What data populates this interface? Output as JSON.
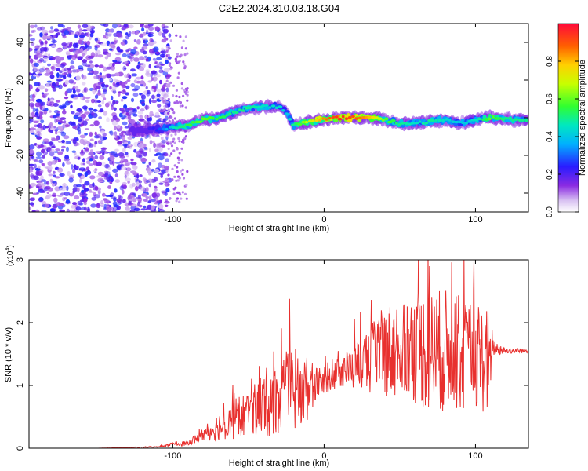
{
  "figure_title": "C2E2.2024.310.03.18.G04",
  "chart_data": [
    {
      "type": "heatmap",
      "title": "C2E2.2024.310.03.18.G04",
      "xlabel": "Height of straight line (km)",
      "ylabel": "Frequency (Hz)",
      "xlim": [
        -195,
        135
      ],
      "ylim": [
        -50,
        50
      ],
      "x_ticks": [
        -100,
        0,
        100
      ],
      "y_ticks": [
        -40,
        -20,
        0,
        20,
        40
      ],
      "colorbar": {
        "label": "Normalized spectral amplitude",
        "range": [
          0,
          1
        ],
        "ticks": [
          "0.0",
          "0.2",
          "0.4",
          "0.6",
          "0.8"
        ],
        "colormap": "rainbow"
      },
      "ridge": {
        "x": [
          -125,
          -110,
          -100,
          -90,
          -80,
          -70,
          -60,
          -50,
          -40,
          -30,
          -25,
          -20,
          -10,
          0,
          10,
          20,
          30,
          40,
          50,
          60,
          70,
          80,
          90,
          100,
          110,
          120,
          135
        ],
        "freq": [
          -7,
          -6,
          -5,
          -4,
          -1,
          0,
          3,
          5,
          6,
          6,
          3,
          -4,
          -2,
          -1,
          0,
          0,
          0,
          -1,
          -3,
          -3,
          -2,
          -1,
          -3,
          -1,
          0,
          -1,
          -1
        ],
        "peak_amplitude": [
          0.15,
          0.25,
          0.45,
          0.55,
          0.6,
          0.55,
          0.5,
          0.5,
          0.45,
          0.45,
          0.4,
          0.5,
          0.7,
          0.85,
          0.95,
          0.9,
          0.8,
          0.6,
          0.5,
          0.45,
          0.5,
          0.45,
          0.4,
          0.45,
          0.6,
          0.5,
          0.5
        ]
      },
      "noise_region": {
        "x_from": -195,
        "x_to": -105,
        "amplitude": [
          0.0,
          0.3
        ]
      }
    },
    {
      "type": "line",
      "xlabel": "Height of straight line (km)",
      "ylabel": "SNR (10 * v/v)",
      "y_scale_label": "(x10^4)",
      "xlim": [
        -195,
        135
      ],
      "ylim": [
        0,
        3
      ],
      "x_ticks": [
        -100,
        0,
        100
      ],
      "y_ticks": [
        0,
        1,
        2,
        3
      ],
      "series": [
        {
          "color": "#e8302e",
          "x": [
            -195,
            -150,
            -110,
            -100,
            -90,
            -80,
            -70,
            -60,
            -50,
            -40,
            -30,
            -20,
            -10,
            -5,
            0,
            10,
            20,
            30,
            40,
            50,
            60,
            70,
            80,
            90,
            100,
            108,
            112,
            120,
            135
          ],
          "y": [
            0.0,
            0.0,
            0.02,
            0.06,
            0.08,
            0.22,
            0.35,
            0.45,
            0.55,
            0.7,
            0.85,
            0.9,
            0.95,
            1.05,
            1.05,
            1.2,
            1.3,
            1.4,
            1.55,
            1.6,
            1.6,
            1.55,
            1.55,
            1.5,
            1.45,
            1.4,
            1.6,
            1.55,
            1.55
          ],
          "noise_amp": [
            0.0,
            0.0,
            0.01,
            0.03,
            0.05,
            0.12,
            0.25,
            0.35,
            0.45,
            0.6,
            0.7,
            0.8,
            0.55,
            0.25,
            0.2,
            0.3,
            0.4,
            0.6,
            0.8,
            0.9,
            1.0,
            1.1,
            1.1,
            1.0,
            0.9,
            1.0,
            0.15,
            0.05,
            0.04
          ]
        }
      ]
    }
  ]
}
